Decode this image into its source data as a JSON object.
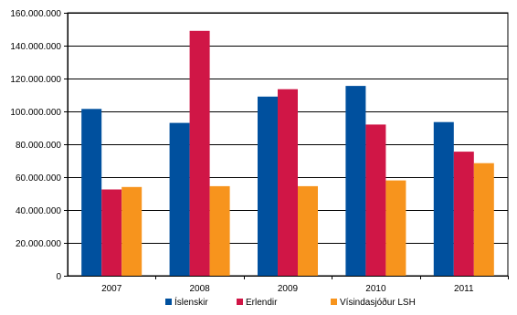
{
  "chart_data": {
    "type": "bar",
    "title": "",
    "xlabel": "",
    "ylabel": "",
    "categories": [
      "2007",
      "2008",
      "2009",
      "2010",
      "2011"
    ],
    "ylim": [
      0,
      160000000
    ],
    "yticks": [
      0,
      20000000,
      40000000,
      60000000,
      80000000,
      100000000,
      120000000,
      140000000,
      160000000
    ],
    "ytick_labels": [
      "0",
      "20.000.000",
      "40.000.000",
      "60.000.000",
      "80.000.000",
      "100.000.000",
      "120.000.000",
      "140.000.000",
      "160.000.000"
    ],
    "grid": true,
    "legend_position": "bottom",
    "series": [
      {
        "name": "Íslenskir",
        "color": "#00509e",
        "values": [
          101500000,
          93000000,
          109000000,
          115500000,
          93500000
        ]
      },
      {
        "name": "Erlendir",
        "color": "#d01646",
        "values": [
          52500000,
          149000000,
          113500000,
          92000000,
          75500000
        ]
      },
      {
        "name": "Vísindasjóður LSH",
        "color": "#f7941d",
        "values": [
          54000000,
          54500000,
          54500000,
          58000000,
          68500000
        ]
      }
    ]
  }
}
